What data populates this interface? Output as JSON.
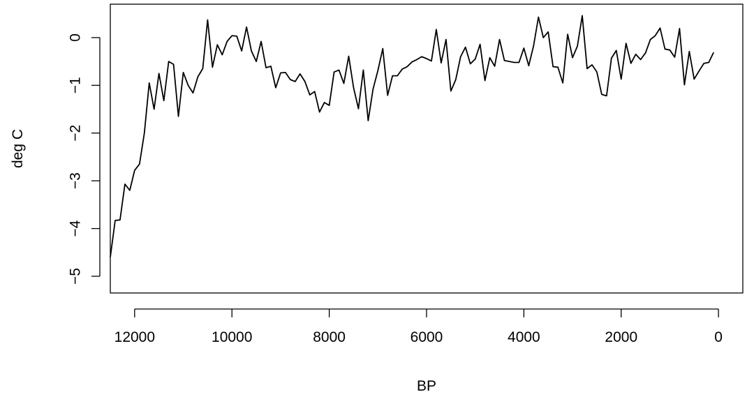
{
  "chart_data": {
    "type": "line",
    "xlabel": "BP",
    "ylabel": "deg C",
    "x_reversed": true,
    "xlim": [
      12500,
      -500
    ],
    "ylim": [
      -5.35,
      0.7
    ],
    "x_ticks": [
      12000,
      10000,
      8000,
      6000,
      4000,
      2000,
      0
    ],
    "y_ticks": [
      -5,
      -4,
      -3,
      -2,
      -1,
      0
    ],
    "x_tick_labels": [
      "12000",
      "10000",
      "8000",
      "6000",
      "4000",
      "2000",
      "0"
    ],
    "y_tick_labels": [
      "−5",
      "−4",
      "−3",
      "−2",
      "−1",
      "0"
    ],
    "grid": false,
    "line_color": "#000000",
    "series": [
      {
        "x": [
          12500,
          12400,
          12300,
          12200,
          12100,
          12000,
          11900,
          11800,
          11700,
          11600,
          11500,
          11400,
          11300,
          11200,
          11100,
          11000,
          10900,
          10800,
          10700,
          10600,
          10500,
          10400,
          10300,
          10200,
          10100,
          10000,
          9900,
          9800,
          9700,
          9600,
          9500,
          9400,
          9300,
          9200,
          9100,
          9000,
          8900,
          8800,
          8700,
          8600,
          8500,
          8400,
          8300,
          8200,
          8100,
          8000,
          7900,
          7800,
          7700,
          7600,
          7500,
          7400,
          7300,
          7200,
          7100,
          7000,
          6900,
          6800,
          6700,
          6600,
          6500,
          6400,
          6300,
          6200,
          6100,
          6000,
          5900,
          5800,
          5700,
          5600,
          5500,
          5400,
          5300,
          5200,
          5100,
          5000,
          4900,
          4800,
          4700,
          4600,
          4500,
          4400,
          4300,
          4200,
          4100,
          4000,
          3900,
          3800,
          3700,
          3600,
          3500,
          3400,
          3300,
          3200,
          3100,
          3000,
          2900,
          2800,
          2700,
          2600,
          2500,
          2400,
          2300,
          2200,
          2100,
          2000,
          1900,
          1800,
          1700,
          1600,
          1500,
          1400,
          1300,
          1200,
          1100,
          1000,
          900,
          800,
          700,
          600,
          500,
          400,
          300,
          200,
          100
        ],
        "values": [
          -4.6,
          -3.83,
          -3.82,
          -3.07,
          -3.2,
          -2.78,
          -2.65,
          -2.0,
          -0.95,
          -1.5,
          -0.75,
          -1.32,
          -0.5,
          -0.56,
          -1.65,
          -0.73,
          -1.0,
          -1.16,
          -0.82,
          -0.65,
          0.37,
          -0.62,
          -0.15,
          -0.36,
          -0.08,
          0.04,
          0.03,
          -0.28,
          0.22,
          -0.28,
          -0.5,
          -0.08,
          -0.63,
          -0.6,
          -1.05,
          -0.74,
          -0.73,
          -0.88,
          -0.92,
          -0.76,
          -0.92,
          -1.2,
          -1.13,
          -1.56,
          -1.36,
          -1.42,
          -0.72,
          -0.68,
          -0.96,
          -0.39,
          -1.05,
          -1.49,
          -0.68,
          -1.74,
          -1.08,
          -0.69,
          -0.23,
          -1.21,
          -0.8,
          -0.8,
          -0.66,
          -0.61,
          -0.51,
          -0.46,
          -0.4,
          -0.44,
          -0.49,
          0.17,
          -0.53,
          -0.04,
          -1.12,
          -0.88,
          -0.4,
          -0.2,
          -0.55,
          -0.45,
          -0.14,
          -0.9,
          -0.42,
          -0.6,
          -0.04,
          -0.48,
          -0.5,
          -0.52,
          -0.52,
          -0.22,
          -0.59,
          -0.17,
          0.43,
          0.0,
          0.12,
          -0.61,
          -0.62,
          -0.95,
          0.07,
          -0.42,
          -0.18,
          0.46,
          -0.65,
          -0.57,
          -0.72,
          -1.19,
          -1.22,
          -0.43,
          -0.27,
          -0.87,
          -0.12,
          -0.54,
          -0.35,
          -0.46,
          -0.32,
          -0.04,
          0.04,
          0.2,
          -0.24,
          -0.26,
          -0.41,
          0.19,
          -0.99,
          -0.29,
          -0.87,
          -0.7,
          -0.54,
          -0.52,
          -0.31
        ]
      }
    ]
  }
}
